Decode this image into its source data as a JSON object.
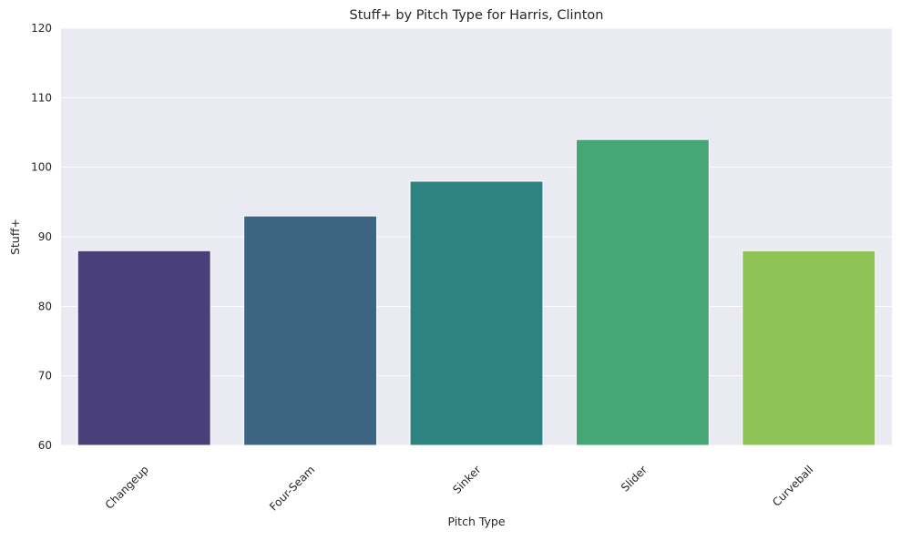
{
  "chart_data": {
    "type": "bar",
    "title": "Stuff+ by Pitch Type for Harris, Clinton",
    "xlabel": "Pitch Type",
    "ylabel": "Stuff+",
    "categories": [
      "Changeup",
      "Four-Seam",
      "Sinker",
      "Slider",
      "Curveball"
    ],
    "values": [
      88,
      93,
      98,
      104,
      88
    ],
    "colors": [
      "#4a4079",
      "#3d6582",
      "#2d8380",
      "#45a776",
      "#8ec455"
    ],
    "ylim": [
      60,
      120
    ],
    "yticks": [
      60,
      70,
      80,
      90,
      100,
      110,
      120
    ],
    "grid": true,
    "background": "#eaeaf2",
    "legend": "none"
  }
}
